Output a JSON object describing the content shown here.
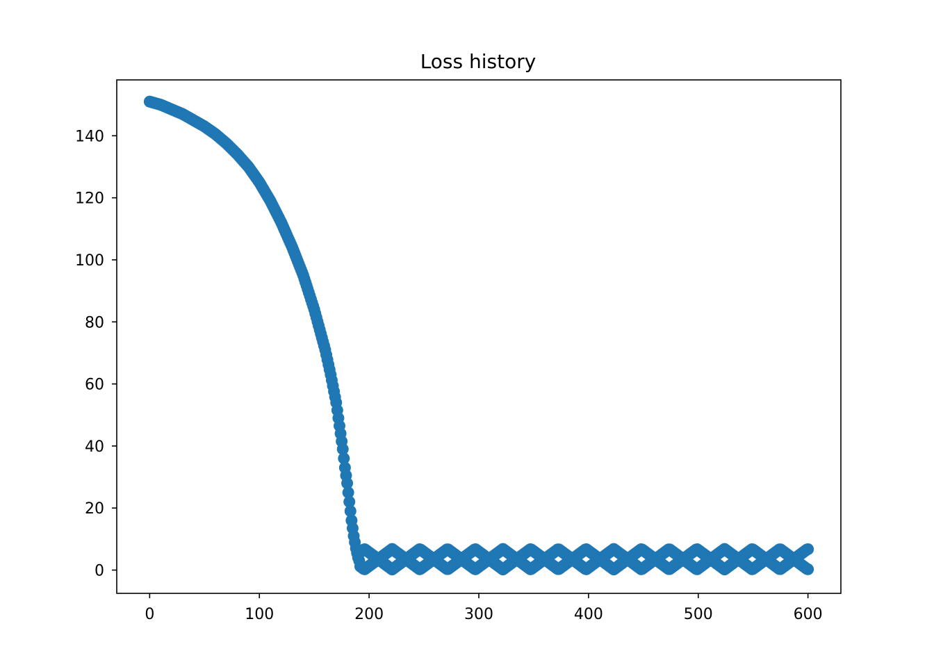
{
  "chart_data": {
    "type": "scatter",
    "title": "Loss history",
    "xlabel": "",
    "ylabel": "",
    "xlim": [
      -30,
      630
    ],
    "ylim": [
      -7.5,
      158
    ],
    "xticks": [
      0,
      100,
      200,
      300,
      400,
      500,
      600
    ],
    "yticks": [
      0,
      20,
      40,
      60,
      80,
      100,
      120,
      140
    ],
    "grid": false,
    "legend": "none",
    "marker_color": "#1f77b4",
    "descent_phase": {
      "x": [
        0,
        10,
        20,
        30,
        40,
        50,
        60,
        70,
        80,
        90,
        100,
        110,
        120,
        130,
        140,
        150,
        160,
        165,
        170,
        172,
        174,
        176,
        178,
        180,
        182,
        184,
        186,
        188,
        190,
        191
      ],
      "y": [
        151,
        150,
        148.5,
        147,
        145,
        143,
        140.5,
        137.5,
        134,
        130,
        125,
        119,
        112,
        104,
        95,
        84,
        71,
        63,
        54,
        49,
        44,
        39,
        33,
        28,
        22,
        16,
        11,
        7,
        4,
        3
      ]
    },
    "oscillation_phase": {
      "x_start": 191,
      "x_end": 600,
      "period": 50.5,
      "first_peak_x": 221,
      "center": 3.5,
      "amplitude": 3.3
    }
  }
}
